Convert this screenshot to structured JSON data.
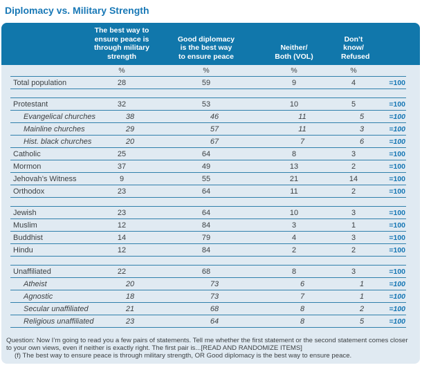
{
  "title": "Diplomacy vs. Military Strength",
  "colors": {
    "header_bar": "#1177ab",
    "card_background": "#e0eaf2",
    "row_line": "#2f7fab",
    "accent_blue": "#1576b4",
    "body_text": "#3c4043"
  },
  "table": {
    "columns": [
      "The best way to\nensure peace is\nthrough military\nstrength",
      "Good diplomacy\nis the best way\nto ensure peace",
      "Neither/\nBoth (VOL)",
      "Don’t know/\nRefused"
    ],
    "unit_row": [
      "%",
      "%",
      "%",
      "%"
    ],
    "total_label": "=100",
    "rows": [
      {
        "label": "Total  population",
        "values": [
          "28",
          "59",
          "9",
          "4"
        ]
      },
      {
        "spacer": true
      },
      {
        "label": "Protestant",
        "values": [
          "32",
          "53",
          "10",
          "5"
        ]
      },
      {
        "label": "Evangelical churches",
        "values": [
          "38",
          "46",
          "11",
          "5"
        ],
        "sub": true
      },
      {
        "label": "Mainline churches",
        "values": [
          "29",
          "57",
          "11",
          "3"
        ],
        "sub": true
      },
      {
        "label": "Hist. black churches",
        "values": [
          "20",
          "67",
          "7",
          "6"
        ],
        "sub": true
      },
      {
        "label": "Catholic",
        "values": [
          "25",
          "64",
          "8",
          "3"
        ]
      },
      {
        "label": "Mormon",
        "values": [
          "37",
          "49",
          "13",
          "2"
        ]
      },
      {
        "label": "Jehovah’s Witness",
        "values": [
          "9",
          "55",
          "21",
          "14"
        ]
      },
      {
        "label": "Orthodox",
        "values": [
          "23",
          "64",
          "11",
          "2"
        ]
      },
      {
        "spacer": true
      },
      {
        "label": "Jewish",
        "values": [
          "23",
          "64",
          "10",
          "3"
        ]
      },
      {
        "label": "Muslim",
        "values": [
          "12",
          "84",
          "3",
          "1"
        ]
      },
      {
        "label": "Buddhist",
        "values": [
          "14",
          "79",
          "4",
          "3"
        ]
      },
      {
        "label": "Hindu",
        "values": [
          "12",
          "84",
          "2",
          "2"
        ]
      },
      {
        "spacer": true
      },
      {
        "label": "Unaffiliated",
        "values": [
          "22",
          "68",
          "8",
          "3"
        ]
      },
      {
        "label": "Atheist",
        "values": [
          "20",
          "73",
          "6",
          "1"
        ],
        "sub": true
      },
      {
        "label": "Agnostic",
        "values": [
          "18",
          "73",
          "7",
          "1"
        ],
        "sub": true
      },
      {
        "label": "Secular unaffiliated",
        "values": [
          "21",
          "68",
          "8",
          "2"
        ],
        "sub": true
      },
      {
        "label": "Religious unaffiliated",
        "values": [
          "23",
          "64",
          "8",
          "5"
        ],
        "sub": true
      }
    ]
  },
  "footnote": {
    "line1": "Question: Now I’m going to read you a few pairs of statements.  Tell me whether the first statement or the second statement comes closer to your own views, even if neither is exactly right.  The first pair is...[READ AND RANDOMIZE ITEMS]",
    "line2": "(f) The best way to ensure peace is through military strength, OR Good diplomacy is the best way to ensure peace."
  }
}
